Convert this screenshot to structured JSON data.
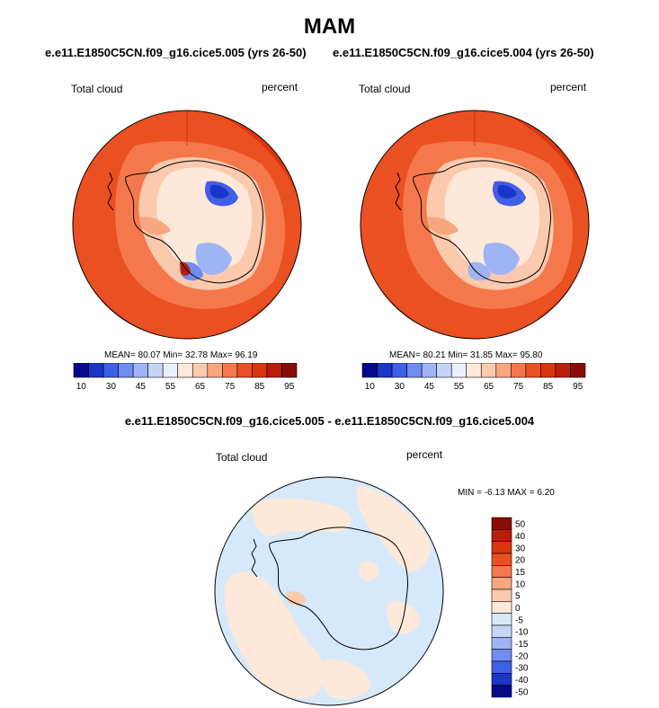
{
  "header": {
    "season": "MAM",
    "left_case": "e.e11.E1850C5CN.f09_g16.cice5.005 (yrs 26-50)",
    "right_case": "e.e11.E1850C5CN.f09_g16.cice5.004 (yrs 26-50)"
  },
  "chart_data": [
    {
      "type": "heatmap",
      "projection": "south-polar-stereographic",
      "variable_label": "Total cloud",
      "units_label": "percent",
      "stats": "MEAN=  80.07  Min=  32.78  Max=  96.19",
      "mean": 80.07,
      "min": 32.78,
      "max": 96.19,
      "colorbar": {
        "orientation": "horizontal",
        "levels": [
          10,
          20,
          30,
          40,
          45,
          50,
          55,
          60,
          65,
          70,
          75,
          80,
          85,
          90,
          95
        ],
        "tick_labels": [
          "10",
          "30",
          "45",
          "55",
          "65",
          "75",
          "85",
          "95"
        ],
        "colors": [
          "#08088a",
          "#1a35c8",
          "#3f5fe6",
          "#6f8cf0",
          "#9eb4f4",
          "#c5d5f8",
          "#e8f1fb",
          "#fde8da",
          "#fbc9ad",
          "#f8a680",
          "#f5784c",
          "#ea5022",
          "#d9360f",
          "#b81e0a",
          "#8a0c07"
        ]
      }
    },
    {
      "type": "heatmap",
      "projection": "south-polar-stereographic",
      "variable_label": "Total cloud",
      "units_label": "percent",
      "stats": "MEAN=  80.21  Min=  31.85  Max=  95.80",
      "mean": 80.21,
      "min": 31.85,
      "max": 95.8,
      "colorbar": {
        "orientation": "horizontal",
        "levels": [
          10,
          20,
          30,
          40,
          45,
          50,
          55,
          60,
          65,
          70,
          75,
          80,
          85,
          90,
          95
        ],
        "tick_labels": [
          "10",
          "30",
          "45",
          "55",
          "65",
          "75",
          "85",
          "95"
        ],
        "colors": [
          "#08088a",
          "#1a35c8",
          "#3f5fe6",
          "#6f8cf0",
          "#9eb4f4",
          "#c5d5f8",
          "#e8f1fb",
          "#fde8da",
          "#fbc9ad",
          "#f8a680",
          "#f5784c",
          "#ea5022",
          "#d9360f",
          "#b81e0a",
          "#8a0c07"
        ]
      }
    },
    {
      "type": "heatmap",
      "projection": "south-polar-stereographic",
      "title": "e.e11.E1850C5CN.f09_g16.cice5.005 - e.e11.E1850C5CN.f09_g16.cice5.004",
      "variable_label": "Total cloud",
      "units_label": "percent",
      "stats": "MIN =  -6.13 MAX =   6.20",
      "min": -6.13,
      "max": 6.2,
      "colorbar": {
        "orientation": "vertical",
        "levels": [
          -50,
          -40,
          -30,
          -20,
          -15,
          -10,
          -5,
          0,
          5,
          10,
          15,
          20,
          30,
          40,
          50
        ],
        "tick_labels": [
          "50",
          "40",
          "30",
          "20",
          "15",
          "10",
          "5",
          "0",
          "-5",
          "-10",
          "-15",
          "-20",
          "-30",
          "-40",
          "-50"
        ],
        "colors": [
          "#08088a",
          "#1a35c8",
          "#3f5fe6",
          "#6f8cf0",
          "#9eb4f4",
          "#c5d5f8",
          "#d6e9fb",
          "#fde8da",
          "#fbc9ad",
          "#f8a680",
          "#f5784c",
          "#ea5022",
          "#d9360f",
          "#b81e0a",
          "#8a0c07"
        ]
      }
    }
  ]
}
